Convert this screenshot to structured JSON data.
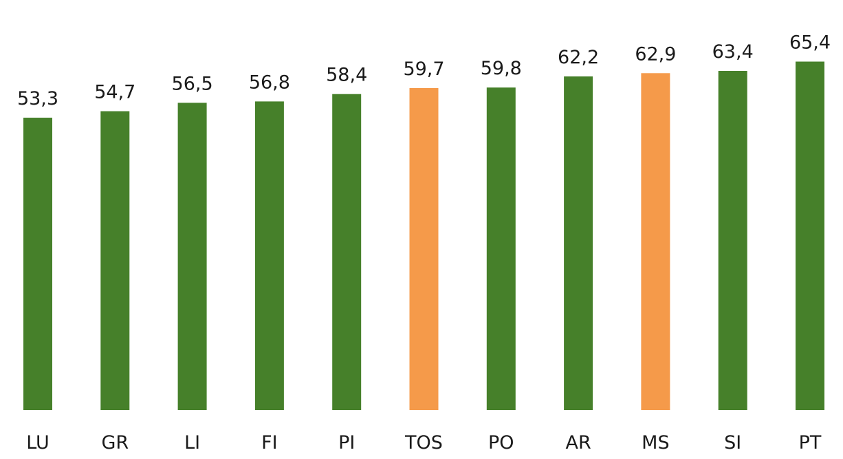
{
  "chart_data": {
    "type": "bar",
    "categories": [
      "LU",
      "GR",
      "LI",
      "FI",
      "PI",
      "TOS",
      "PO",
      "AR",
      "MS",
      "SI",
      "PT"
    ],
    "values": [
      53.3,
      54.7,
      56.5,
      56.8,
      58.4,
      59.7,
      59.8,
      62.2,
      62.9,
      63.4,
      65.4
    ],
    "value_labels": [
      "53,3",
      "54,7",
      "56,5",
      "56,8",
      "58,4",
      "59,7",
      "59,8",
      "62,2",
      "62,9",
      "63,4",
      "65,4"
    ],
    "highlighted": [
      "TOS",
      "MS"
    ],
    "colors": {
      "default": "#46802a",
      "highlight": "#f59a4a"
    },
    "title": "",
    "xlabel": "",
    "ylabel": "",
    "grid": false,
    "legend": "none"
  }
}
